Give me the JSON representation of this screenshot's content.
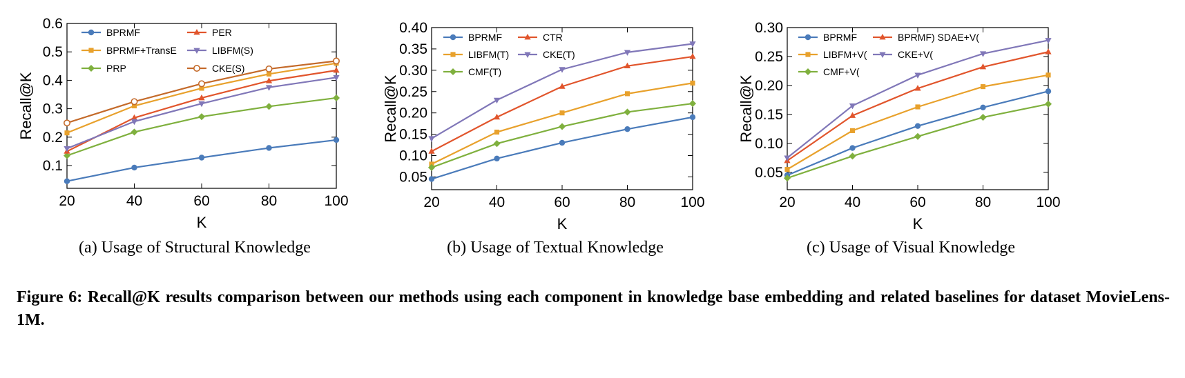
{
  "figure": {
    "caption": "Figure 6: Recall@K results comparison between our methods using each component in knowledge base embedding and related baselines for dataset MovieLens-1M.",
    "colors": {
      "blue": "#4a7bba",
      "orange": "#e8a12c",
      "green": "#7fb03e",
      "red": "#e1552c",
      "purple": "#8077b8",
      "brown": "#c46a2a"
    }
  },
  "chart_data": [
    {
      "type": "line",
      "caption": "(a) Usage of Structural Knowledge",
      "xlabel": "K",
      "ylabel": "Recall@K",
      "x": [
        20,
        40,
        60,
        80,
        100
      ],
      "xlim": [
        20,
        100
      ],
      "ylim": [
        0.02,
        0.6
      ],
      "xticks": [
        "20",
        "40",
        "60",
        "80",
        "100"
      ],
      "yticks": [
        0.1,
        0.2,
        0.3,
        0.4,
        0.5,
        0.6
      ],
      "ytick_labels": [
        "0.1",
        "0.2",
        "0.3",
        "0.4",
        "0.5",
        "0.6"
      ],
      "grid": false,
      "legend_position": "top-left",
      "series": [
        {
          "name": "BPRMF",
          "color": "#4a7bba",
          "marker": "circle",
          "values": [
            0.045,
            0.093,
            0.128,
            0.162,
            0.19
          ]
        },
        {
          "name": "BPRMF+TransE",
          "color": "#e8a12c",
          "marker": "square",
          "values": [
            0.215,
            0.31,
            0.372,
            0.422,
            0.46
          ]
        },
        {
          "name": "PRP",
          "color": "#7fb03e",
          "marker": "diamond",
          "values": [
            0.135,
            0.218,
            0.272,
            0.308,
            0.338
          ]
        },
        {
          "name": "PER",
          "color": "#e1552c",
          "marker": "triangle-up",
          "values": [
            0.15,
            0.268,
            0.338,
            0.398,
            0.435
          ]
        },
        {
          "name": "LIBFM(S)",
          "color": "#8077b8",
          "marker": "triangle-down",
          "values": [
            0.16,
            0.255,
            0.318,
            0.375,
            0.41
          ]
        },
        {
          "name": "CKE(S)",
          "color": "#c46a2a",
          "marker": "open-circle",
          "values": [
            0.25,
            0.325,
            0.388,
            0.44,
            0.468
          ]
        }
      ]
    },
    {
      "type": "line",
      "caption": "(b) Usage of Textual Knowledge",
      "xlabel": "K",
      "ylabel": "Recall@K",
      "x": [
        20,
        40,
        60,
        80,
        100
      ],
      "xlim": [
        20,
        100
      ],
      "ylim": [
        0.02,
        0.4
      ],
      "xticks": [
        "20",
        "40",
        "60",
        "80",
        "100"
      ],
      "yticks": [
        0.05,
        0.1,
        0.15,
        0.2,
        0.25,
        0.3,
        0.35,
        0.4
      ],
      "ytick_labels": [
        "0.05",
        "0.10",
        "0.15",
        "0.20",
        "0.25",
        "0.30",
        "0.35",
        "0.40"
      ],
      "grid": false,
      "legend_position": "top-left",
      "series": [
        {
          "name": "BPRMF",
          "color": "#4a7bba",
          "marker": "circle",
          "values": [
            0.045,
            0.093,
            0.13,
            0.162,
            0.19
          ]
        },
        {
          "name": "LIBFM(T)",
          "color": "#e8a12c",
          "marker": "square",
          "values": [
            0.08,
            0.155,
            0.2,
            0.245,
            0.27
          ]
        },
        {
          "name": "CMF(T)",
          "color": "#7fb03e",
          "marker": "diamond",
          "values": [
            0.072,
            0.128,
            0.168,
            0.202,
            0.222
          ]
        },
        {
          "name": "CTR",
          "color": "#e1552c",
          "marker": "triangle-up",
          "values": [
            0.11,
            0.19,
            0.262,
            0.31,
            0.332
          ]
        },
        {
          "name": "CKE(T)",
          "color": "#8077b8",
          "marker": "triangle-down",
          "values": [
            0.14,
            0.23,
            0.302,
            0.342,
            0.362
          ]
        }
      ]
    },
    {
      "type": "line",
      "caption": "(c) Usage of Visual Knowledge",
      "xlabel": "K",
      "ylabel": "Recall@K",
      "x": [
        20,
        40,
        60,
        80,
        100
      ],
      "xlim": [
        20,
        100
      ],
      "ylim": [
        0.02,
        0.3
      ],
      "xticks": [
        "20",
        "40",
        "60",
        "80",
        "100"
      ],
      "yticks": [
        0.05,
        0.1,
        0.15,
        0.2,
        0.25,
        0.3
      ],
      "ytick_labels": [
        "0.05",
        "0.10",
        "0.15",
        "0.20",
        "0.25",
        "0.30"
      ],
      "grid": false,
      "legend_position": "top-left",
      "series": [
        {
          "name": "BPRMF",
          "color": "#4a7bba",
          "marker": "circle",
          "values": [
            0.045,
            0.092,
            0.13,
            0.162,
            0.19
          ]
        },
        {
          "name": "LIBFM+V(",
          "color": "#e8a12c",
          "marker": "square",
          "values": [
            0.055,
            0.122,
            0.163,
            0.198,
            0.218
          ]
        },
        {
          "name": "CMF+V(",
          "color": "#7fb03e",
          "marker": "diamond",
          "values": [
            0.04,
            0.078,
            0.112,
            0.145,
            0.168
          ]
        },
        {
          "name": "BPRMF) SDAE+V(",
          "color": "#e1552c",
          "marker": "triangle-up",
          "values": [
            0.07,
            0.148,
            0.195,
            0.232,
            0.258
          ]
        },
        {
          "name": "CKE+V(",
          "color": "#8077b8",
          "marker": "triangle-down",
          "values": [
            0.075,
            0.165,
            0.218,
            0.255,
            0.278
          ]
        }
      ]
    }
  ]
}
